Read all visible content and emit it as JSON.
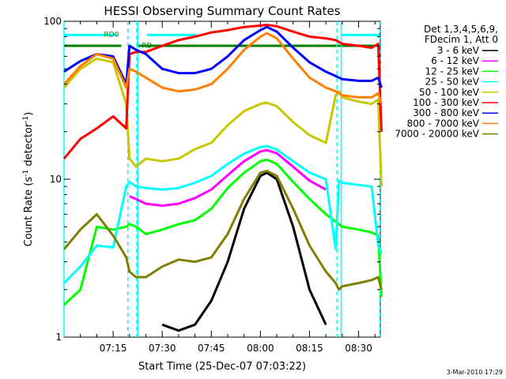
{
  "chart_data": {
    "type": "line",
    "title": "HESSI Observing Summary Count Rates",
    "xlabel": "Start Time (25-Dec-07 07:03:22)",
    "ylabel": "Count Rate (s⁻¹ detector⁻¹)",
    "ylabel_parts": {
      "main": "Count Rate (s",
      "sup1": "-1",
      "mid": " detector",
      "sup2": "-1",
      "end": ")"
    },
    "y_scale": "log",
    "ylim": [
      1,
      100
    ],
    "y_tick_labels": [
      "1",
      "10",
      "100"
    ],
    "xlim": [
      "07:03:22",
      "08:40:00"
    ],
    "x_tick_labels": [
      "07:15",
      "07:30",
      "07:45",
      "08:00",
      "08:15",
      "08:30"
    ],
    "x_tick_minutes": [
      15,
      30,
      45,
      60,
      75,
      90
    ],
    "grid": false,
    "legend_position": "right",
    "legend_header": [
      "Det 1,3,4,5,6,9,",
      "FDecim 1, Att 0"
    ],
    "footer_date": "3-Mar-2010 17:29",
    "annotations": [
      {
        "text": "RD0",
        "x_minute": 14.5,
        "y": 80
      },
      {
        "text": "RD",
        "x_minute": 25.3,
        "y": 68
      }
    ],
    "flags": [
      {
        "name": "flag-cyan",
        "color": "#00ffff",
        "y": 82,
        "segments": [
          [
            0,
            16.2
          ],
          [
            25.3,
            40.5
          ],
          [
            84.7,
            96.5
          ]
        ]
      },
      {
        "name": "flag-green",
        "color": "#007f00",
        "y": 70,
        "segments": [
          [
            0,
            17.5
          ],
          [
            22.5,
            96.5
          ]
        ]
      }
    ],
    "vertical_lines": [
      {
        "style": "dashed",
        "color": "#00ffff",
        "x_minutes": [
          19.5,
          22.2,
          83.4,
          96.5
        ]
      },
      {
        "style": "solid",
        "color": "#00ffff",
        "x_minutes": [
          0.0,
          22.5,
          84.7
        ]
      }
    ],
    "x_minutes": [
      0,
      5,
      10,
      15,
      19,
      20,
      22,
      25,
      30,
      35,
      40,
      45,
      50,
      55,
      60,
      62,
      65,
      70,
      75,
      80,
      83,
      84,
      85,
      90,
      94,
      96,
      97
    ],
    "series": [
      {
        "name": "3 - 6 keV",
        "color": "#000000",
        "values": [
          null,
          null,
          null,
          null,
          null,
          null,
          null,
          null,
          1.2,
          1.1,
          1.2,
          1.7,
          3.0,
          6.5,
          10.5,
          11.0,
          10.0,
          5.0,
          2.0,
          1.2,
          null,
          null,
          null,
          null,
          null,
          null,
          null
        ]
      },
      {
        "name": "6 - 12 keV",
        "color": "#ff00ff",
        "values": [
          null,
          null,
          null,
          null,
          null,
          7.8,
          7.5,
          7.0,
          6.8,
          7.0,
          7.6,
          8.6,
          10.6,
          13.0,
          15.0,
          15.3,
          14.6,
          12.0,
          9.8,
          8.6,
          null,
          null,
          null,
          null,
          null,
          null,
          null
        ]
      },
      {
        "name": "12 - 25 keV",
        "color": "#00ff00",
        "values": [
          1.6,
          2.0,
          5.0,
          4.8,
          5.0,
          5.2,
          5.0,
          4.5,
          4.8,
          5.2,
          5.5,
          6.5,
          8.8,
          11.0,
          13.0,
          13.3,
          12.5,
          9.6,
          7.5,
          6.0,
          5.4,
          5.2,
          5.0,
          4.8,
          4.6,
          4.4,
          1.8
        ]
      },
      {
        "name": "25 - 50 keV",
        "color": "#00ffff",
        "values": [
          2.2,
          2.8,
          3.8,
          3.7,
          9.0,
          9.6,
          9.0,
          8.8,
          8.6,
          8.8,
          9.5,
          10.5,
          12.5,
          14.5,
          16.0,
          16.2,
          15.4,
          13.0,
          11.0,
          10.0,
          3.6,
          9.8,
          9.5,
          9.2,
          9.0,
          3.8,
          3.4
        ]
      },
      {
        "name": "50 - 100 keV",
        "color": "#c8c800",
        "values": [
          38,
          50,
          58,
          55,
          30,
          13.5,
          12.0,
          13.5,
          13.0,
          13.5,
          15.5,
          17.0,
          22.0,
          27.0,
          30.0,
          30.5,
          29.0,
          23.0,
          19.0,
          17.0,
          34.0,
          36.0,
          33.0,
          31.0,
          30.0,
          32.0,
          9.0
        ]
      },
      {
        "name": "100 - 300 keV",
        "color": "#ff0000",
        "values": [
          13.5,
          18.0,
          21.0,
          25.0,
          21.0,
          62.0,
          64.0,
          64.0,
          70.0,
          76.0,
          80.0,
          85.0,
          88.0,
          92.0,
          94.0,
          95.0,
          93.0,
          86.0,
          80.0,
          78.0,
          76.0,
          74.0,
          72.0,
          70.0,
          68.0,
          72.0,
          20.0
        ]
      },
      {
        "name": "300 - 800 keV",
        "color": "#0000ff",
        "values": [
          48,
          56,
          62,
          60,
          40,
          70.0,
          66.0,
          62.0,
          50.0,
          47.0,
          47.0,
          50.0,
          60.0,
          76.0,
          88.0,
          92.0,
          86.0,
          68.0,
          55.0,
          48.0,
          45.0,
          44.0,
          43.0,
          42.0,
          42.0,
          44.0,
          38.0
        ]
      },
      {
        "name": "800 - 7000 keV",
        "color": "#ff8000",
        "values": [
          40,
          52,
          62,
          58,
          38,
          50.0,
          48.0,
          44.0,
          38.0,
          36.0,
          37.0,
          40.0,
          50.0,
          66.0,
          80.0,
          84.0,
          78.0,
          58.0,
          44.0,
          38.0,
          36.0,
          35.0,
          34.0,
          33.0,
          33.0,
          35.0,
          30.0
        ]
      },
      {
        "name": "7000 - 20000 keV",
        "color": "#808000",
        "values": [
          3.6,
          4.8,
          6.0,
          4.4,
          3.2,
          2.6,
          2.4,
          2.4,
          2.8,
          3.1,
          3.0,
          3.2,
          4.5,
          7.5,
          11.0,
          11.3,
          10.5,
          6.5,
          3.8,
          2.6,
          2.2,
          2.0,
          2.1,
          2.2,
          2.3,
          2.4,
          2.0
        ]
      }
    ]
  }
}
